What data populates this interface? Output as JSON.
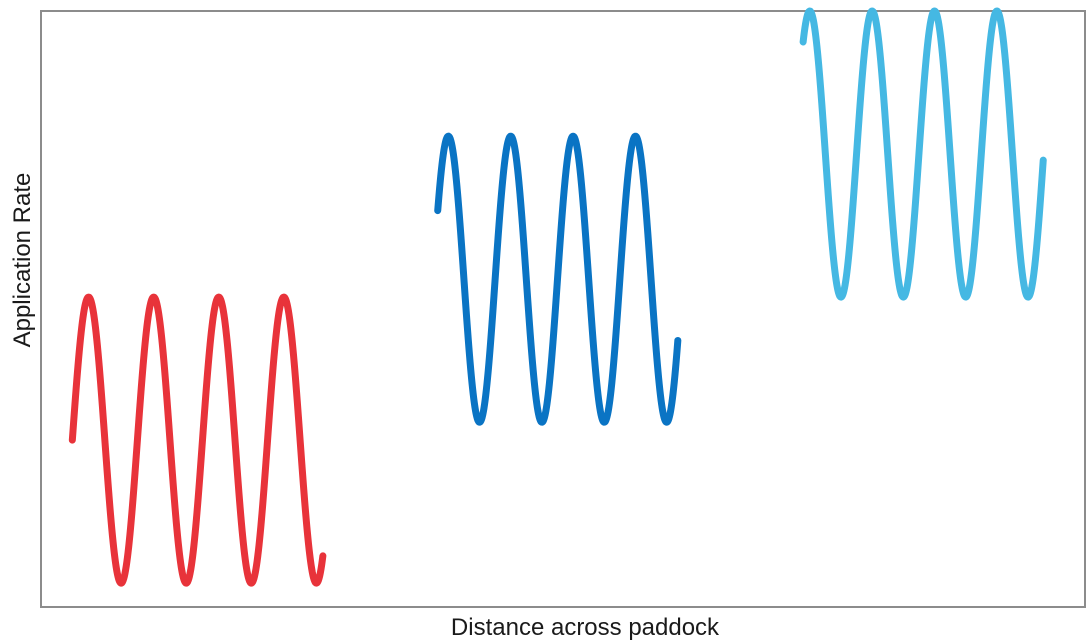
{
  "chart_data": {
    "type": "line",
    "title": "",
    "xlabel": "Distance across paddock",
    "ylabel": "Application Rate",
    "xlim": [
      0,
      100
    ],
    "ylim": [
      0,
      100
    ],
    "grid": false,
    "legend": "none",
    "series": [
      {
        "color": "#e8333a",
        "x_start": 3,
        "x_end": 27,
        "center": 28,
        "amplitude": 24,
        "cycles": 3.85,
        "phase": 0.0
      },
      {
        "color": "#0a74c4",
        "x_start": 38,
        "x_end": 61,
        "center": 55,
        "amplitude": 24,
        "cycles": 3.85,
        "phase": 0.5
      },
      {
        "color": "#45b8e3",
        "x_start": 73,
        "x_end": 96,
        "center": 76,
        "amplitude": 24,
        "cycles": 3.85,
        "phase": 0.9
      }
    ]
  }
}
